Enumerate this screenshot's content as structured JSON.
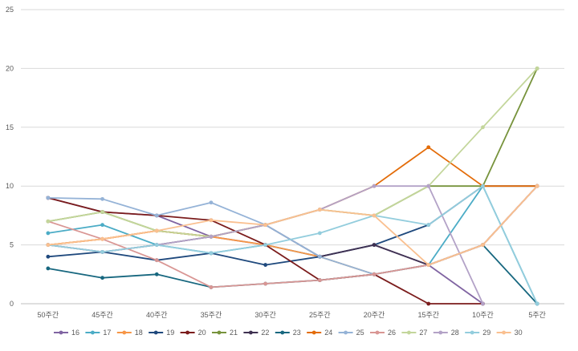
{
  "chart_data": {
    "type": "line",
    "categories": [
      "50주간",
      "45주간",
      "40주간",
      "35주간",
      "30주간",
      "25주간",
      "20주간",
      "15주간",
      "10주간",
      "5주간"
    ],
    "ylim": [
      0,
      25
    ],
    "yticks": [
      0,
      5,
      10,
      15,
      20,
      25
    ],
    "grid": true,
    "legend_position": "bottom",
    "series": [
      {
        "name": "16",
        "color": "#8064A2",
        "values": [
          9,
          7.8,
          7.5,
          5.7,
          5,
          4,
          5,
          3.3,
          0,
          null
        ]
      },
      {
        "name": "17",
        "color": "#4BACC6",
        "values": [
          6,
          6.7,
          5,
          4.3,
          5,
          4,
          2.5,
          3.3,
          10,
          0
        ]
      },
      {
        "name": "18",
        "color": "#F79646",
        "values": [
          5,
          5.5,
          6.2,
          5.7,
          5,
          4,
          2.5,
          3.3,
          5,
          10
        ]
      },
      {
        "name": "19",
        "color": "#1F497D",
        "values": [
          4,
          4.4,
          3.7,
          4.3,
          3.3,
          4,
          5,
          6.7,
          10,
          10
        ]
      },
      {
        "name": "20",
        "color": "#7B1C1C",
        "values": [
          9,
          7.8,
          7.5,
          7.1,
          5,
          2,
          2.5,
          0,
          0,
          null
        ]
      },
      {
        "name": "21",
        "color": "#77933C",
        "values": [
          7,
          7.8,
          6.2,
          5.7,
          6.7,
          8,
          7.5,
          10,
          10,
          20
        ]
      },
      {
        "name": "22",
        "color": "#3F3151",
        "values": [
          5,
          4.4,
          5,
          5.7,
          6.7,
          4,
          5,
          3.3,
          5,
          10
        ]
      },
      {
        "name": "23",
        "color": "#17677F",
        "values": [
          3,
          2.2,
          2.5,
          1.4,
          1.7,
          2,
          2.5,
          3.3,
          5,
          0
        ]
      },
      {
        "name": "24",
        "color": "#E36C09",
        "values": [
          5,
          5.5,
          6.2,
          5.7,
          6.7,
          8,
          10,
          13.3,
          10,
          10
        ]
      },
      {
        "name": "25",
        "color": "#95B3D7",
        "values": [
          9,
          8.9,
          7.5,
          8.6,
          6.7,
          4,
          2.5,
          3.3,
          5,
          10
        ]
      },
      {
        "name": "26",
        "color": "#D99694",
        "values": [
          7,
          5.5,
          3.7,
          1.4,
          1.7,
          2,
          2.5,
          3.3,
          5,
          10
        ]
      },
      {
        "name": "27",
        "color": "#C3D69B",
        "values": [
          7,
          7.8,
          6.2,
          5.7,
          6.7,
          8,
          7.5,
          10,
          15,
          20
        ]
      },
      {
        "name": "28",
        "color": "#B3A2C7",
        "values": [
          5,
          4.4,
          5,
          5.7,
          6.7,
          8,
          10,
          10,
          0,
          null
        ]
      },
      {
        "name": "29",
        "color": "#93CDDD",
        "values": [
          5,
          4.4,
          5,
          4.3,
          5,
          6,
          7.5,
          6.7,
          10,
          0
        ]
      },
      {
        "name": "30",
        "color": "#FAC090",
        "values": [
          5,
          5.5,
          6.2,
          7.1,
          6.7,
          8,
          7.5,
          3.3,
          5,
          10
        ]
      }
    ]
  }
}
